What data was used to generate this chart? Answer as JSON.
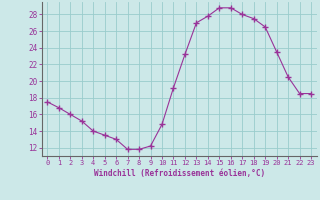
{
  "x": [
    0,
    1,
    2,
    3,
    4,
    5,
    6,
    7,
    8,
    9,
    10,
    11,
    12,
    13,
    14,
    15,
    16,
    17,
    18,
    19,
    20,
    21,
    22,
    23
  ],
  "y": [
    17.5,
    16.8,
    16.0,
    15.2,
    14.0,
    13.5,
    13.0,
    11.8,
    11.8,
    12.2,
    14.8,
    19.2,
    23.2,
    27.0,
    27.8,
    28.8,
    28.8,
    28.0,
    27.5,
    26.5,
    23.5,
    20.5,
    18.5,
    18.5
  ],
  "line_color": "#993399",
  "marker": "+",
  "marker_color": "#993399",
  "bg_color": "#cce8e8",
  "grid_color": "#99cccc",
  "xlabel": "Windchill (Refroidissement éolien,°C)",
  "xlabel_color": "#993399",
  "ylabel_ticks": [
    12,
    14,
    16,
    18,
    20,
    22,
    24,
    26,
    28
  ],
  "xlim": [
    -0.5,
    23.5
  ],
  "ylim": [
    11.0,
    29.5
  ],
  "tick_label_color": "#993399",
  "figsize": [
    3.2,
    2.0
  ],
  "dpi": 100
}
